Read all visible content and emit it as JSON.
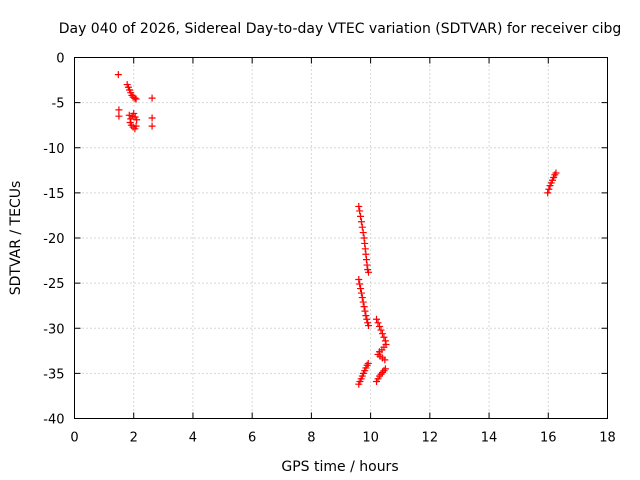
{
  "chart_data": {
    "type": "scatter",
    "title": "Day 040 of 2026, Sidereal Day-to-day VTEC variation (SDTVAR) for receiver cibg",
    "xlabel": "GPS time / hours",
    "ylabel": "SDTVAR / TECUs",
    "xlim": [
      0,
      18
    ],
    "ylim": [
      -40,
      0
    ],
    "xticks": [
      0,
      2,
      4,
      6,
      8,
      10,
      12,
      14,
      16,
      18
    ],
    "yticks": [
      0,
      -5,
      -10,
      -15,
      -20,
      -25,
      -30,
      -35,
      -40
    ],
    "grid": true,
    "marker": "plus",
    "color": "#ff0000",
    "series": [
      {
        "name": "cibg",
        "points": [
          [
            1.48,
            -1.9
          ],
          [
            1.5,
            -5.8
          ],
          [
            1.5,
            -6.5
          ],
          [
            1.78,
            -3.0
          ],
          [
            1.82,
            -3.3
          ],
          [
            1.86,
            -3.6
          ],
          [
            1.9,
            -3.9
          ],
          [
            1.94,
            -4.2
          ],
          [
            1.98,
            -4.4
          ],
          [
            2.04,
            -4.5
          ],
          [
            2.08,
            -4.6
          ],
          [
            1.85,
            -6.4
          ],
          [
            1.9,
            -6.8
          ],
          [
            1.95,
            -6.5
          ],
          [
            2.0,
            -6.2
          ],
          [
            2.05,
            -6.6
          ],
          [
            1.88,
            -7.2
          ],
          [
            1.92,
            -7.5
          ],
          [
            1.98,
            -7.7
          ],
          [
            2.04,
            -7.9
          ],
          [
            2.08,
            -7.6
          ],
          [
            2.1,
            -6.9
          ],
          [
            2.62,
            -4.5
          ],
          [
            2.62,
            -6.7
          ],
          [
            2.62,
            -7.6
          ],
          [
            9.6,
            -16.5
          ],
          [
            9.63,
            -17.0
          ],
          [
            9.66,
            -17.6
          ],
          [
            9.69,
            -18.2
          ],
          [
            9.72,
            -18.8
          ],
          [
            9.75,
            -19.4
          ],
          [
            9.78,
            -20.0
          ],
          [
            9.8,
            -20.6
          ],
          [
            9.82,
            -21.2
          ],
          [
            9.84,
            -21.8
          ],
          [
            9.86,
            -22.4
          ],
          [
            9.88,
            -23.0
          ],
          [
            9.9,
            -23.5
          ],
          [
            9.93,
            -23.8
          ],
          [
            9.6,
            -24.6
          ],
          [
            9.63,
            -25.1
          ],
          [
            9.66,
            -25.6
          ],
          [
            9.69,
            -26.1
          ],
          [
            9.72,
            -26.6
          ],
          [
            9.75,
            -27.1
          ],
          [
            9.78,
            -27.6
          ],
          [
            9.81,
            -28.1
          ],
          [
            9.84,
            -28.6
          ],
          [
            9.87,
            -29.0
          ],
          [
            9.9,
            -29.4
          ],
          [
            9.93,
            -29.7
          ],
          [
            9.6,
            -36.2
          ],
          [
            9.64,
            -35.9
          ],
          [
            9.68,
            -35.6
          ],
          [
            9.72,
            -35.3
          ],
          [
            9.76,
            -35.0
          ],
          [
            9.8,
            -34.7
          ],
          [
            9.84,
            -34.4
          ],
          [
            9.88,
            -34.1
          ],
          [
            9.92,
            -33.9
          ],
          [
            10.2,
            -29.0
          ],
          [
            10.25,
            -29.4
          ],
          [
            10.3,
            -29.8
          ],
          [
            10.35,
            -30.2
          ],
          [
            10.4,
            -30.6
          ],
          [
            10.45,
            -31.0
          ],
          [
            10.5,
            -31.4
          ],
          [
            10.52,
            -31.8
          ],
          [
            10.45,
            -32.1
          ],
          [
            10.38,
            -32.4
          ],
          [
            10.3,
            -32.6
          ],
          [
            10.25,
            -32.9
          ],
          [
            10.32,
            -33.1
          ],
          [
            10.4,
            -33.3
          ],
          [
            10.48,
            -33.5
          ],
          [
            10.2,
            -35.9
          ],
          [
            10.25,
            -35.6
          ],
          [
            10.3,
            -35.3
          ],
          [
            10.35,
            -35.1
          ],
          [
            10.4,
            -34.9
          ],
          [
            10.45,
            -34.7
          ],
          [
            10.5,
            -34.5
          ],
          [
            15.98,
            -15.0
          ],
          [
            16.02,
            -14.6
          ],
          [
            16.06,
            -14.2
          ],
          [
            16.1,
            -13.9
          ],
          [
            16.14,
            -13.6
          ],
          [
            16.18,
            -13.3
          ],
          [
            16.22,
            -13.0
          ],
          [
            16.26,
            -12.8
          ]
        ]
      }
    ]
  }
}
